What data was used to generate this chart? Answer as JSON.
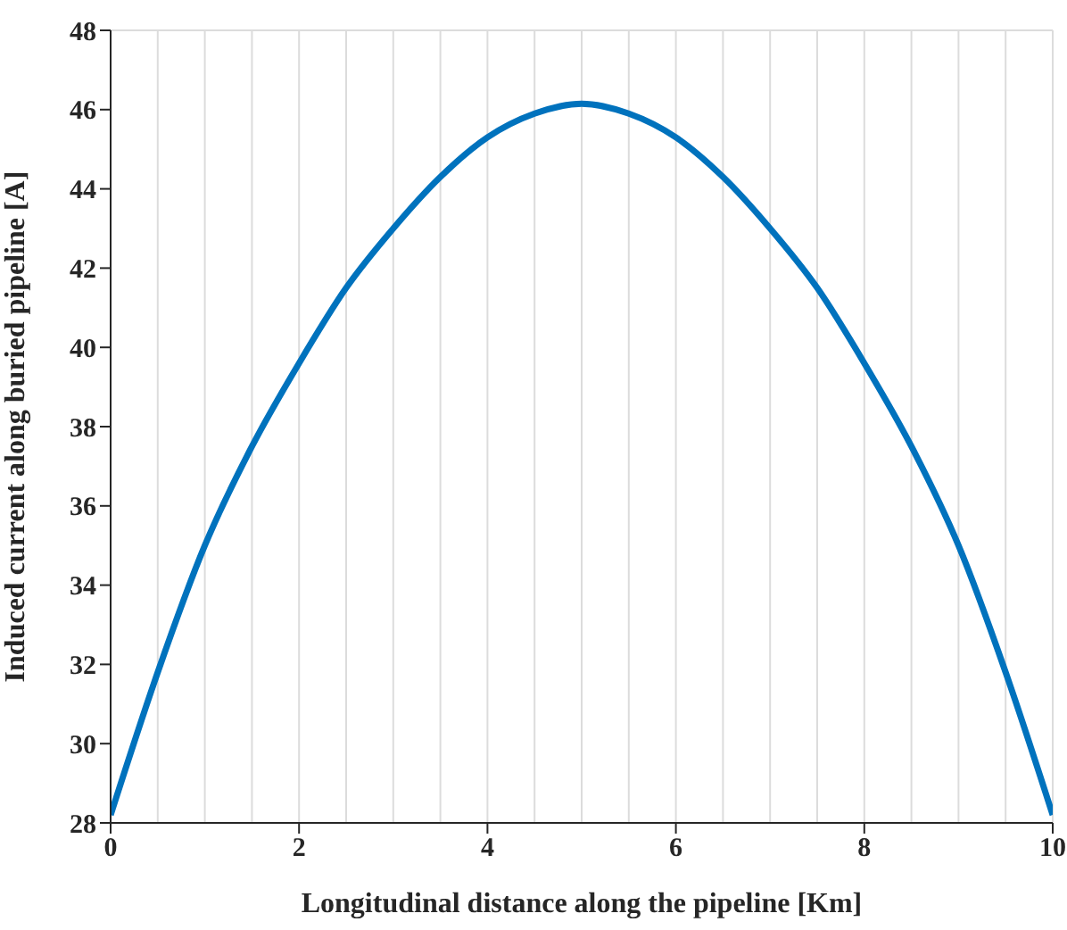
{
  "chart_data": {
    "type": "line",
    "xlabel": "Longitudinal distance along the pipeline [Km]",
    "ylabel": "Induced current along buried pipeline [A]",
    "x": [
      0,
      0.5,
      1,
      1.5,
      2,
      2.5,
      3,
      3.5,
      4,
      4.5,
      5,
      5.5,
      6,
      6.5,
      7,
      7.5,
      8,
      8.5,
      9,
      9.5,
      10
    ],
    "series": [
      {
        "color": "#0072bd",
        "values": [
          28.2,
          31.8,
          35.0,
          37.5,
          39.6,
          41.5,
          43.0,
          44.3,
          45.3,
          45.9,
          46.15,
          45.9,
          45.3,
          44.3,
          43.0,
          41.5,
          39.6,
          37.5,
          35.0,
          31.8,
          28.2
        ]
      }
    ],
    "xlim": [
      0,
      10
    ],
    "xticks": [
      0,
      2,
      4,
      6,
      8,
      10
    ],
    "ylim": [
      28,
      48
    ],
    "yticks": [
      28,
      30,
      32,
      34,
      36,
      38,
      40,
      42,
      44,
      46,
      48
    ],
    "grid": true,
    "marker": "none",
    "line_style": "solid",
    "legend": false
  }
}
